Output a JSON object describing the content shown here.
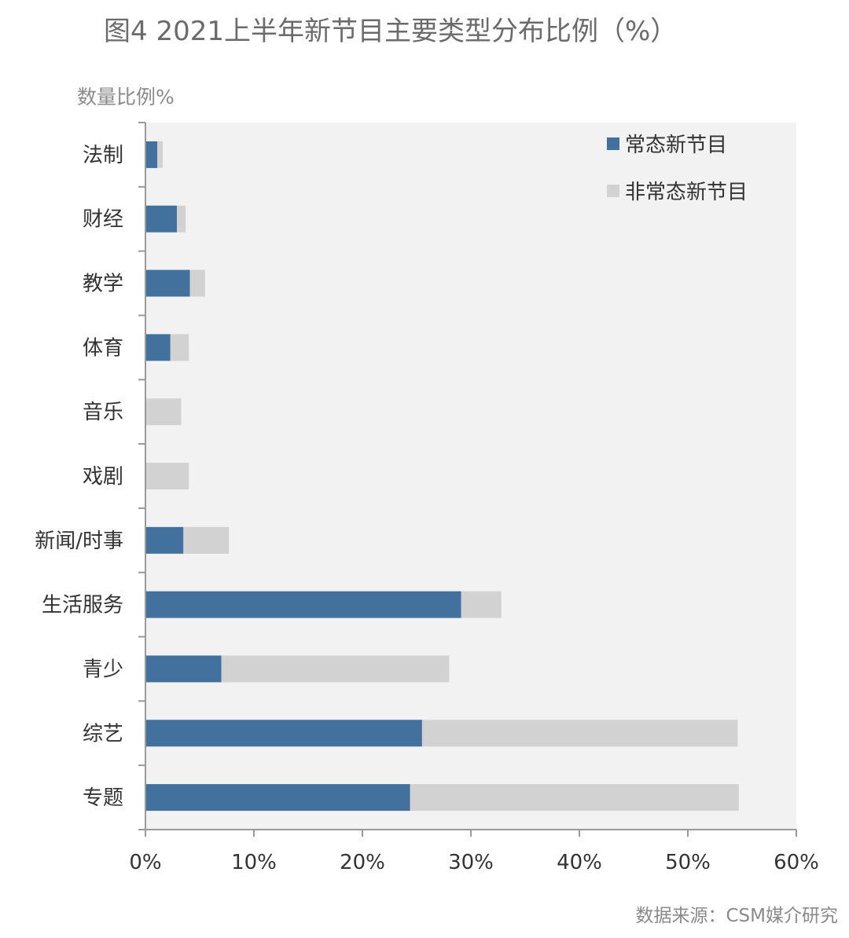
{
  "title": "图4 2021上半年新节目主要类型分布比例（%）",
  "source": "数据来源：CSM媒介研究",
  "colors": {
    "series1": "#41719c",
    "series2": "#d3d2d3",
    "plot_bg": "#f2f2f2",
    "axis": "#999999"
  },
  "chart_data": {
    "type": "bar",
    "orientation": "horizontal",
    "stacked": true,
    "ylabel": "数量比例%",
    "categories": [
      "法制",
      "财经",
      "教学",
      "体育",
      "音乐",
      "戏剧",
      "新闻/时事",
      "生活服务",
      "青少",
      "综艺",
      "专题"
    ],
    "series": [
      {
        "name": "常态新节目",
        "values": [
          1.1,
          2.9,
          4.1,
          2.3,
          0.0,
          0.0,
          3.5,
          29.1,
          7.0,
          25.5,
          24.4
        ]
      },
      {
        "name": "非常态新节目",
        "values": [
          0.5,
          0.8,
          1.4,
          1.7,
          3.3,
          4.0,
          4.2,
          3.7,
          21.0,
          29.1,
          30.3
        ]
      }
    ],
    "xlim": [
      0,
      60
    ],
    "xticks": [
      0,
      10,
      20,
      30,
      40,
      50,
      60
    ],
    "xtick_labels": [
      "0%",
      "10%",
      "20%",
      "30%",
      "40%",
      "50%",
      "60%"
    ],
    "legend_position": "top-right",
    "grid": false
  }
}
